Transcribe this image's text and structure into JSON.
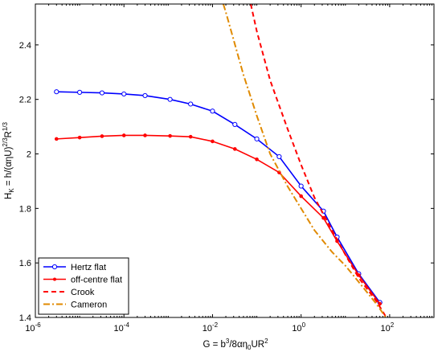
{
  "chart_data": {
    "type": "line",
    "xlabel": "G = b³/8αη₀UR²",
    "ylabel": "H_K = h/(αηU)^{2/3}R^{1/3}",
    "x_scale": "log",
    "xlim": [
      1e-06,
      1000
    ],
    "ylim": [
      1.4,
      2.55
    ],
    "x_ticks": [
      {
        "value": 1e-06,
        "base": "10",
        "exp": "-6"
      },
      {
        "value": 0.0001,
        "base": "10",
        "exp": "-4"
      },
      {
        "value": 0.01,
        "base": "10",
        "exp": "-2"
      },
      {
        "value": 1,
        "base": "10",
        "exp": "0"
      },
      {
        "value": 100,
        "base": "10",
        "exp": "2"
      }
    ],
    "y_ticks": [
      "1.4",
      "1.6",
      "1.8",
      "2",
      "2.2",
      "2.4"
    ],
    "legend_position": "bottom-left",
    "series": [
      {
        "name": "Hertz flat",
        "color": "#0000ff",
        "marker": "circle",
        "line_style": "solid",
        "x": [
          3e-06,
          1e-05,
          3.2e-05,
          0.0001,
          0.0003,
          0.0011,
          0.0032,
          0.01,
          0.032,
          0.1,
          0.32,
          1.0,
          3.2,
          6.5,
          20,
          60
        ],
        "y": [
          2.228,
          2.226,
          2.224,
          2.22,
          2.214,
          2.2,
          2.183,
          2.157,
          2.108,
          2.055,
          1.99,
          1.882,
          1.79,
          1.695,
          1.56,
          1.455
        ]
      },
      {
        "name": "off-centre flat",
        "color": "#ff0000",
        "marker": "dot",
        "line_style": "solid",
        "x": [
          3e-06,
          1e-05,
          3.2e-05,
          0.0001,
          0.0003,
          0.0011,
          0.0032,
          0.01,
          0.032,
          0.1,
          0.32,
          1.0,
          3.2,
          6.5,
          20,
          60
        ],
        "y": [
          2.055,
          2.06,
          2.065,
          2.068,
          2.068,
          2.066,
          2.063,
          2.046,
          2.018,
          1.98,
          1.932,
          1.845,
          1.765,
          1.68,
          1.555,
          1.45
        ]
      },
      {
        "name": "Crook",
        "color": "#ff0000",
        "marker": "none",
        "line_style": "dashed",
        "x": [
          0.073,
          0.1,
          0.2,
          0.5,
          1,
          2,
          5,
          10,
          20,
          50,
          100
        ],
        "y": [
          2.55,
          2.45,
          2.27,
          2.09,
          1.96,
          1.84,
          1.72,
          1.63,
          1.545,
          1.46,
          1.38
        ]
      },
      {
        "name": "Cameron",
        "color": "#e08a00",
        "marker": "none",
        "line_style": "dashdot",
        "x": [
          0.0175,
          0.02,
          0.05,
          0.1,
          0.2,
          0.5,
          1,
          2,
          5,
          10,
          20,
          50,
          100
        ],
        "y": [
          2.55,
          2.52,
          2.29,
          2.14,
          2.0,
          1.88,
          1.8,
          1.72,
          1.64,
          1.59,
          1.53,
          1.45,
          1.38
        ]
      }
    ]
  }
}
